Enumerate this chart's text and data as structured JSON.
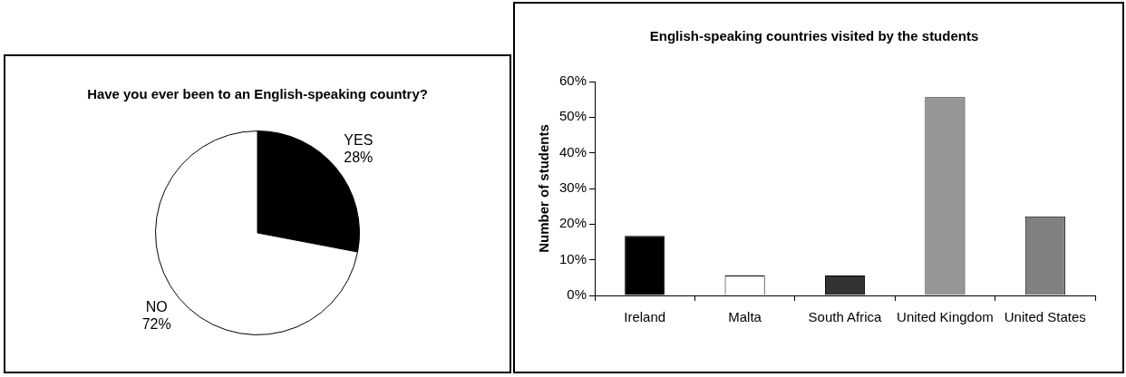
{
  "chart_data": [
    {
      "type": "pie",
      "title": "Have you ever been to an English-speaking country?",
      "categories": [
        "YES",
        "NO"
      ],
      "values": [
        28,
        72
      ],
      "colors": [
        "#000000",
        "#ffffff"
      ],
      "value_labels": [
        "28%",
        "72%"
      ],
      "legend": false
    },
    {
      "type": "bar",
      "title": "English-speaking countries visited by the students",
      "ylabel": "Number of students",
      "categories": [
        "Ireland",
        "Malta",
        "South Africa",
        "United Kingdom",
        "United States"
      ],
      "values": [
        16.7,
        5.6,
        5.6,
        55.6,
        22.2
      ],
      "colors": [
        "#000000",
        "#ffffff",
        "#333333",
        "#969696",
        "#808080"
      ],
      "ylim": [
        0,
        60
      ],
      "yticks": [
        {
          "value": 0,
          "label": "0%"
        },
        {
          "value": 10,
          "label": "10%"
        },
        {
          "value": 20,
          "label": "20%"
        },
        {
          "value": 30,
          "label": "30%"
        },
        {
          "value": 40,
          "label": "40%"
        },
        {
          "value": 50,
          "label": "50%"
        },
        {
          "value": 60,
          "label": "60%"
        }
      ],
      "grid": false,
      "legend": false
    }
  ]
}
